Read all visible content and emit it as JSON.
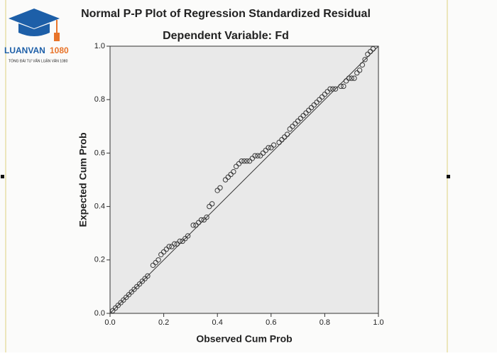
{
  "logo": {
    "brand_main": "LUANVAN",
    "brand_number": "1080",
    "tagline": "TỔNG ĐÀI TƯ VẤN LUẬN VĂN 1080"
  },
  "chart_data": {
    "type": "scatter",
    "title": "Normal P-P Plot of Regression Standardized Residual",
    "subtitle": "Dependent Variable: Fd",
    "x_label": "Observed Cum Prob",
    "y_label": "Expected Cum Prob",
    "color": "#3a3a3a",
    "xlim": [
      0,
      1
    ],
    "ylim": [
      0,
      1
    ],
    "xticks": [
      {
        "value": 0,
        "label": "0.0"
      },
      {
        "value": 0.2,
        "label": "0.2"
      },
      {
        "value": 0.4,
        "label": "0.4"
      },
      {
        "value": 0.6,
        "label": "0.6"
      },
      {
        "value": 0.8,
        "label": "0.8"
      },
      {
        "value": 1,
        "label": "1.0"
      }
    ],
    "yticks": [
      {
        "value": 0,
        "label": "0.0"
      },
      {
        "value": 0.2,
        "label": "0.2"
      },
      {
        "value": 0.4,
        "label": "0.4"
      },
      {
        "value": 0.6,
        "label": "0.6"
      },
      {
        "value": 0.8,
        "label": "0.8"
      },
      {
        "value": 1,
        "label": "1.0"
      }
    ],
    "x": [
      0.01,
      0.02,
      0.03,
      0.04,
      0.05,
      0.06,
      0.07,
      0.08,
      0.09,
      0.1,
      0.11,
      0.12,
      0.13,
      0.14,
      0.16,
      0.17,
      0.18,
      0.19,
      0.2,
      0.21,
      0.22,
      0.23,
      0.24,
      0.25,
      0.26,
      0.27,
      0.28,
      0.29,
      0.31,
      0.32,
      0.33,
      0.34,
      0.35,
      0.36,
      0.37,
      0.38,
      0.4,
      0.41,
      0.43,
      0.44,
      0.45,
      0.46,
      0.47,
      0.48,
      0.49,
      0.5,
      0.51,
      0.52,
      0.53,
      0.54,
      0.55,
      0.56,
      0.57,
      0.58,
      0.59,
      0.6,
      0.61,
      0.63,
      0.64,
      0.65,
      0.66,
      0.67,
      0.68,
      0.69,
      0.7,
      0.71,
      0.72,
      0.73,
      0.74,
      0.75,
      0.76,
      0.77,
      0.78,
      0.79,
      0.8,
      0.81,
      0.82,
      0.83,
      0.84,
      0.86,
      0.87,
      0.88,
      0.89,
      0.9,
      0.91,
      0.92,
      0.93,
      0.94,
      0.95,
      0.96,
      0.97,
      0.98
    ],
    "values": [
      0.01,
      0.02,
      0.03,
      0.04,
      0.05,
      0.06,
      0.07,
      0.08,
      0.09,
      0.1,
      0.11,
      0.12,
      0.13,
      0.14,
      0.18,
      0.19,
      0.2,
      0.22,
      0.23,
      0.24,
      0.25,
      0.25,
      0.26,
      0.26,
      0.27,
      0.27,
      0.28,
      0.29,
      0.33,
      0.33,
      0.34,
      0.35,
      0.35,
      0.36,
      0.4,
      0.41,
      0.46,
      0.47,
      0.5,
      0.51,
      0.52,
      0.53,
      0.55,
      0.56,
      0.57,
      0.57,
      0.57,
      0.57,
      0.58,
      0.59,
      0.59,
      0.59,
      0.6,
      0.61,
      0.62,
      0.62,
      0.63,
      0.64,
      0.65,
      0.66,
      0.67,
      0.69,
      0.7,
      0.71,
      0.72,
      0.73,
      0.74,
      0.75,
      0.76,
      0.77,
      0.78,
      0.79,
      0.8,
      0.81,
      0.82,
      0.83,
      0.84,
      0.84,
      0.84,
      0.85,
      0.85,
      0.87,
      0.88,
      0.88,
      0.88,
      0.9,
      0.91,
      0.93,
      0.95,
      0.97,
      0.98,
      0.99
    ]
  }
}
